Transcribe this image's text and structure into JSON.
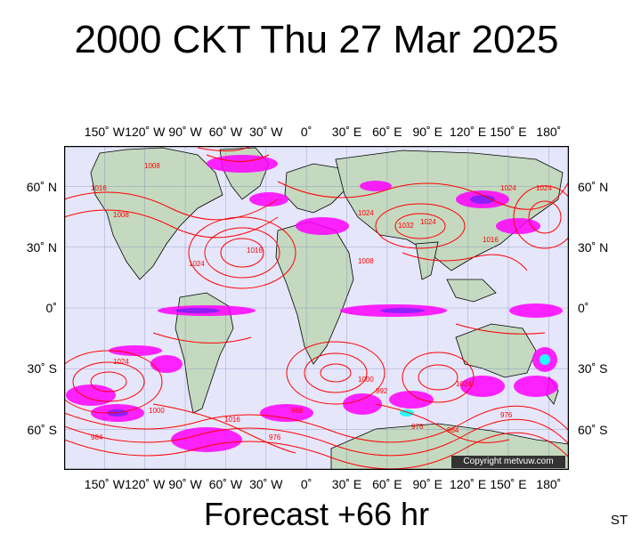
{
  "title": "2000 CKT Thu 27 Mar 2025",
  "footer": "Forecast +66 hr",
  "code": "ST",
  "copyright": "Copyright metvuw.com",
  "x_axis": {
    "labels": [
      "150˚ W",
      "120˚ W",
      "90˚ W",
      "60˚ W",
      "30˚ W",
      "0˚",
      "30˚ E",
      "60˚ E",
      "90˚ E",
      "120˚ E",
      "150˚ E",
      "180˚"
    ],
    "longitudes": [
      -150,
      -120,
      -90,
      -60,
      -30,
      0,
      30,
      60,
      90,
      120,
      150,
      180
    ],
    "range": [
      -180,
      195
    ]
  },
  "y_axis": {
    "labels": [
      "60˚ N",
      "30˚ N",
      "0˚",
      "30˚ S",
      "60˚ S"
    ],
    "latitudes": [
      60,
      30,
      0,
      -30,
      -60
    ],
    "range": [
      -80,
      80
    ]
  },
  "isobar_labels": [
    "1016",
    "1008",
    "1024",
    "1016",
    "1024",
    "1032",
    "1024",
    "1008",
    "1016",
    "1024",
    "1024",
    "1008",
    "1024",
    "1016",
    "1000",
    "984",
    "976",
    "968",
    "976",
    "984",
    "992",
    "1000",
    "976",
    "1024"
  ],
  "colors": {
    "ocean": "#e6e6fa",
    "land": "#c4d9c0",
    "isobar": "#ff0000",
    "rain_light": "#ff00ff",
    "rain_mid": "#8000ff",
    "rain_heavy": "#00ffff",
    "border": "#000000"
  }
}
